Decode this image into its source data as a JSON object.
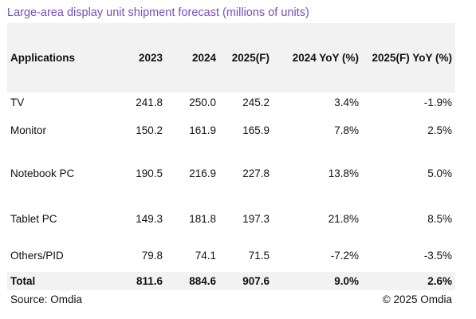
{
  "title": "Large-area display unit shipment forecast (millions of units)",
  "table": {
    "headers": [
      "Applications",
      "2023",
      "2024",
      "2025(F)",
      "2024 YoY (%)",
      "2025(F) YoY (%)"
    ],
    "rows": [
      [
        "TV",
        "241.8",
        "250.0",
        "245.2",
        "3.4%",
        "-1.9%"
      ],
      [
        "Monitor",
        "150.2",
        "161.9",
        "165.9",
        "7.8%",
        "2.5%"
      ],
      [
        "Notebook PC",
        "190.5",
        "216.9",
        "227.8",
        "13.8%",
        "5.0%"
      ],
      [
        "Tablet PC",
        "149.3",
        "181.8",
        "197.3",
        "21.8%",
        "8.5%"
      ],
      [
        "Others/PID",
        "79.8",
        "74.1",
        "71.5",
        "-7.2%",
        "-3.5%"
      ]
    ],
    "total": [
      "Total",
      "811.6",
      "884.6",
      "907.6",
      "9.0%",
      "2.6%"
    ]
  },
  "footer": {
    "source": "Source: Omdia",
    "copyright": "© 2025 Omdia"
  }
}
